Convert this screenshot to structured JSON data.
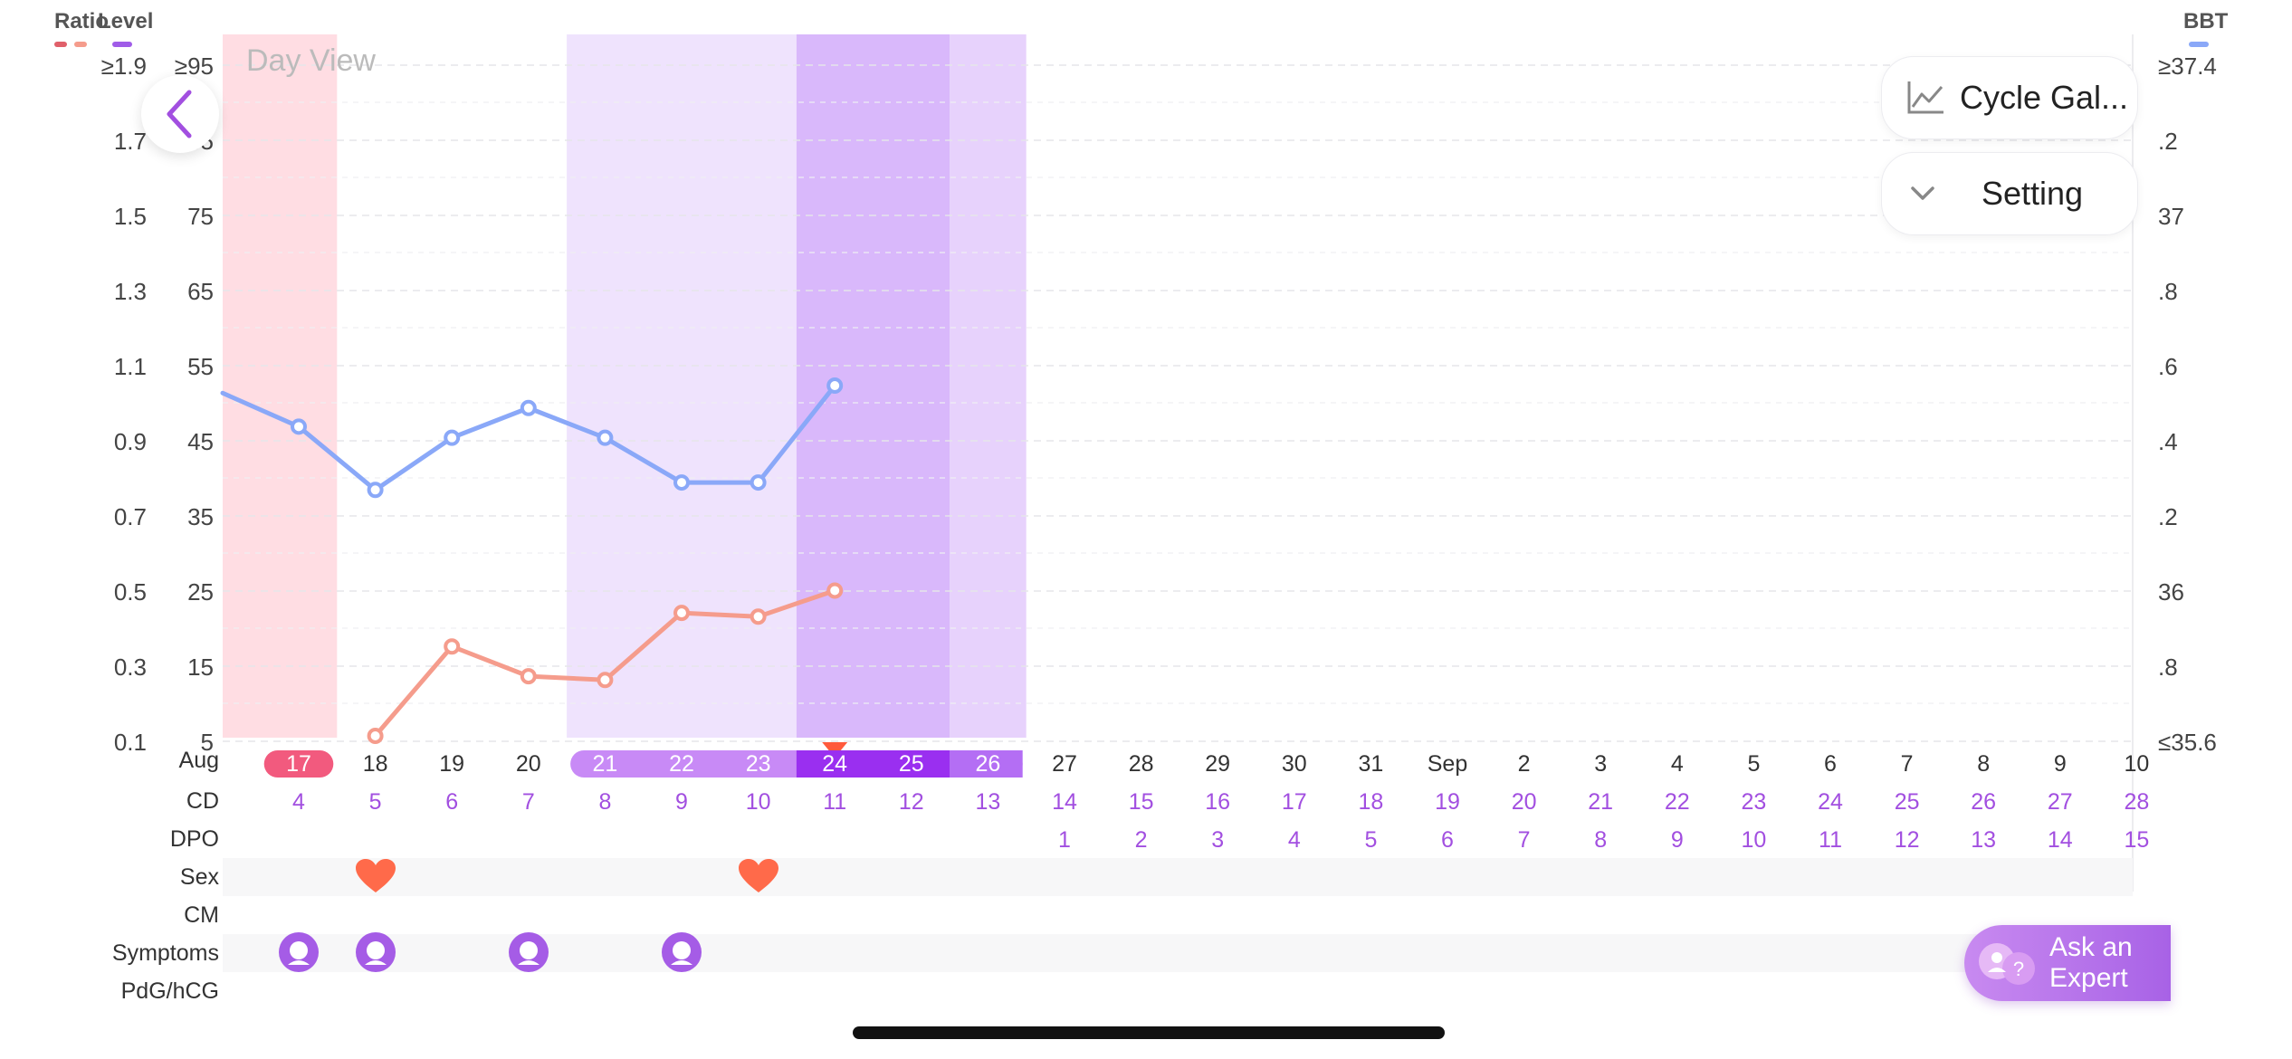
{
  "header": {
    "ratio_label": "Ratio",
    "level_label": "Level",
    "bbt_label": "BBT",
    "colors": {
      "ratio_dark": "#e0606a",
      "ratio_light": "#f59c8c",
      "level": "#a05ce8",
      "bbt": "#8aa8f8"
    }
  },
  "day_view_label": "Day View",
  "controls": {
    "cycle_gallery": "Cycle Gal...",
    "setting": "Setting"
  },
  "axes": {
    "ratio_ticks": [
      "≥1.9",
      "1.7",
      "1.5",
      "1.3",
      "1.1",
      "0.9",
      "0.7",
      "0.5",
      "0.3",
      "0.1"
    ],
    "level_ticks": [
      "≥95",
      "85",
      "75",
      "65",
      "55",
      "45",
      "35",
      "25",
      "15",
      "5"
    ],
    "bbt_ticks": [
      "≥37.4",
      ".2",
      "37",
      ".8",
      ".6",
      ".4",
      ".2",
      "36",
      ".8",
      "≤35.6"
    ]
  },
  "rows": {
    "month": "Aug",
    "cd": "CD",
    "dpo": "DPO",
    "sex": "Sex",
    "cm": "CM",
    "symptoms": "Symptoms",
    "pdg": "PdG/hCG"
  },
  "dates": [
    "17",
    "18",
    "19",
    "20",
    "21",
    "22",
    "23",
    "24",
    "25",
    "26",
    "27",
    "28",
    "29",
    "30",
    "31",
    "Sep",
    "2",
    "3",
    "4",
    "5",
    "6",
    "7",
    "8",
    "9",
    "10"
  ],
  "cycle_days": [
    "4",
    "5",
    "6",
    "7",
    "8",
    "9",
    "10",
    "11",
    "12",
    "13",
    "14",
    "15",
    "16",
    "17",
    "18",
    "19",
    "20",
    "21",
    "22",
    "23",
    "24",
    "25",
    "26",
    "27",
    "28"
  ],
  "dpo": [
    "",
    "",
    "",
    "",
    "",
    "",
    "",
    "",
    "",
    "",
    "1",
    "2",
    "3",
    "4",
    "5",
    "6",
    "7",
    "8",
    "9",
    "10",
    "11",
    "12",
    "13",
    "14",
    "15"
  ],
  "sex_days": [
    1,
    6
  ],
  "symptom_days": [
    0,
    1,
    3,
    5
  ],
  "symptom_icons": [
    "head-symptom-icon",
    "breast-symptom-icon",
    "energy-symptom-icon",
    "mood-symptom-icon"
  ],
  "chart_data": {
    "type": "line",
    "categories": [
      "Aug 16",
      "Aug 17",
      "Aug 18",
      "Aug 19",
      "Aug 20",
      "Aug 21",
      "Aug 22",
      "Aug 23",
      "Aug 24"
    ],
    "series": [
      {
        "values": [
          36.52,
          36.43,
          36.26,
          36.4,
          36.48,
          36.4,
          36.28,
          36.28,
          36.54
        ]
      },
      {
        "values": [
          null,
          null,
          0.1,
          0.34,
          0.26,
          0.25,
          0.43,
          0.42,
          0.49
        ]
      }
    ],
    "ylim_left": [
      0.1,
      1.9
    ],
    "ylim_bbt": [
      35.6,
      37.4
    ],
    "phases": {
      "period": [
        "Aug 16",
        "Aug 17"
      ],
      "fertile_light": [
        "Aug 21",
        "Aug 23"
      ],
      "fertile_peak": [
        "Aug 24",
        "Aug 25"
      ],
      "fertile_tail": [
        "Aug 26"
      ]
    },
    "today": "Aug 24",
    "grid": true
  },
  "ask_expert": "Ask an\nExpert"
}
